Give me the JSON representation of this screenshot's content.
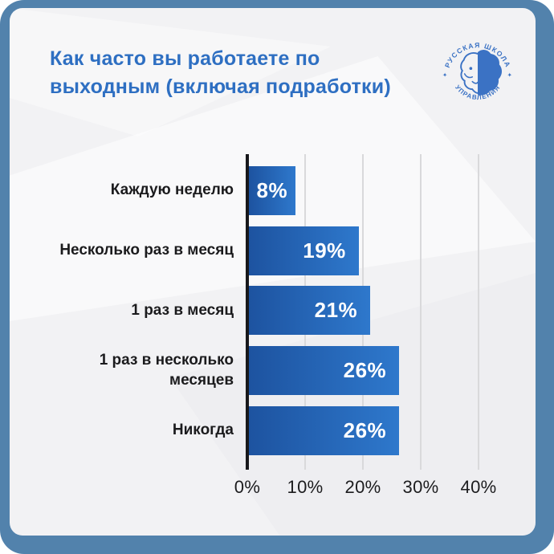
{
  "header": {
    "title_line1": "Как часто вы работаете по",
    "title_line2": "выходным (включая подработки)"
  },
  "logo": {
    "arc_top": "РУССКАЯ ШКОЛА",
    "arc_bottom": "УПРАВЛЕНИЯ",
    "separator_left": "✦",
    "separator_right": "✦"
  },
  "chart_data": {
    "type": "bar",
    "orientation": "horizontal",
    "title": "Как часто вы работаете по выходным (включая подработки)",
    "categories": [
      "Каждую неделю",
      "Несколько раз в месяц",
      "1 раз в месяц",
      "1 раз в несколько месяцев",
      "Никогда"
    ],
    "values": [
      8,
      19,
      21,
      26,
      26
    ],
    "value_labels": [
      "8%",
      "19%",
      "21%",
      "26%",
      "26%"
    ],
    "x_tick_values": [
      0,
      10,
      20,
      30,
      40
    ],
    "x_tick_labels": [
      "0%",
      "10%",
      "20%",
      "30%",
      "40%"
    ],
    "xlim": [
      0,
      42
    ],
    "grid": true,
    "legend": false
  },
  "colors": {
    "frame": "#5282ac",
    "card_background": "#f2f2f4",
    "title_text": "#2e6fc2",
    "bar_gradient_start": "#1d53a0",
    "bar_gradient_end": "#2e78cc",
    "bar_value_text": "#ffffff",
    "category_text": "#1b1b1d",
    "axis_line": "#18181b",
    "gridline": "#d9d9db",
    "tick_text": "#1c1c1e",
    "logo_blue": "#3b72c4"
  }
}
